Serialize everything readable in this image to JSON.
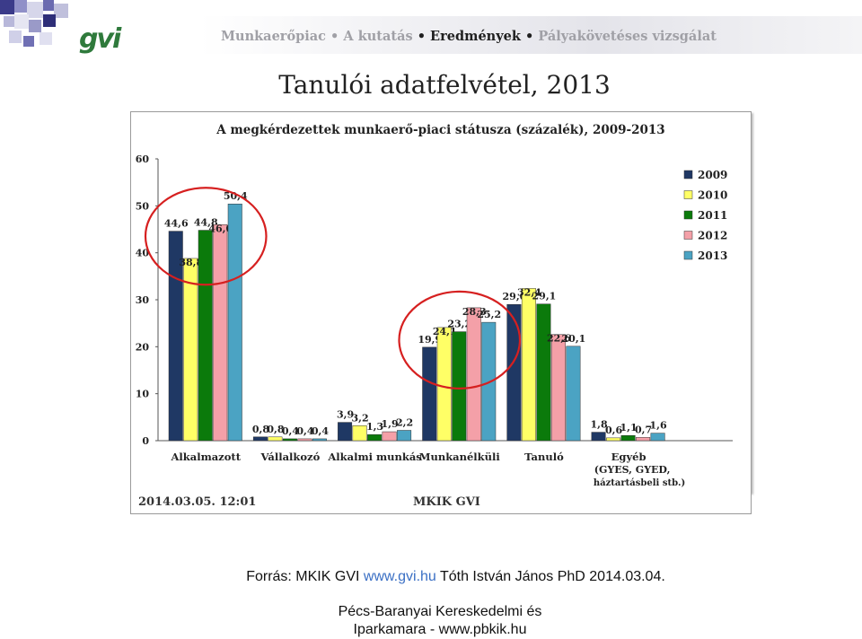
{
  "header": {
    "breadcrumb": [
      "Munkaerőpiac",
      "A kutatás",
      "Eredmények",
      "Pályakövetéses vizsgálat"
    ],
    "active_index": 2,
    "logo_text": "gvi"
  },
  "slide": {
    "title": "Tanulói adatfelvétel, 2013"
  },
  "chart_data": {
    "type": "bar",
    "title": "A megkérdezettek munkaerő-piaci státusza (százalék), 2009-2013",
    "categories": [
      "Alkalmazott",
      "Vállalkozó",
      "Alkalmi munkás",
      "Munkanélküli",
      "Tanuló",
      "Egyéb"
    ],
    "category_sublabels": [
      "",
      "",
      "",
      "",
      "",
      "(GYES, GYED, háztartásbeli stb.)"
    ],
    "series": [
      {
        "name": "2009",
        "color": "#1f3864",
        "values": [
          44.6,
          0.8,
          3.9,
          19.9,
          29.0,
          1.8
        ]
      },
      {
        "name": "2010",
        "color": "#ffff66",
        "values": [
          38.8,
          0.8,
          3.2,
          24.1,
          32.4,
          0.6
        ]
      },
      {
        "name": "2011",
        "color": "#0b7a0b",
        "values": [
          44.8,
          0.4,
          1.3,
          23.2,
          29.1,
          1.1
        ]
      },
      {
        "name": "2012",
        "color": "#f4a0a8",
        "values": [
          46.0,
          0.4,
          1.9,
          28.3,
          22.6,
          0.7
        ]
      },
      {
        "name": "2013",
        "color": "#4ba3c3",
        "values": [
          50.4,
          0.4,
          2.2,
          25.2,
          20.1,
          1.6
        ]
      }
    ],
    "value_labels": [
      [
        "44,6",
        "0,8",
        "3,9",
        "19,9",
        "29,0",
        "1,8"
      ],
      [
        "38,8",
        "0,8",
        "3,2",
        "24,1",
        "32,4",
        "0,6"
      ],
      [
        "44,8",
        "0,4",
        "1,3",
        "23,2",
        "29,1",
        "1,1"
      ],
      [
        "46,0",
        "0,4",
        "1,9",
        "28,3",
        "22,6",
        "0,7"
      ],
      [
        "50,4",
        "0,4",
        "2,2",
        "25,2",
        "20,1",
        "1,6"
      ]
    ],
    "ylim": [
      0,
      60
    ],
    "yticks": [
      0,
      10,
      20,
      30,
      40,
      50,
      60
    ],
    "legend_position": "right",
    "highlight_color": "#d62020",
    "highlighted_categories": [
      "Alkalmazott",
      "Munkanélküli"
    ],
    "footer_left": "2014.03.05. 12:01",
    "footer_center": "MKIK GVI"
  },
  "source": {
    "prefix": "Forrás: MKIK GVI",
    "link": "www.gvi.hu",
    "suffix": "Tóth István János PhD 2014.03.04."
  },
  "organization": {
    "line1": "Pécs-Baranyai Kereskedelmi és",
    "line2": "Iparkamara - www.pbkik.hu"
  }
}
